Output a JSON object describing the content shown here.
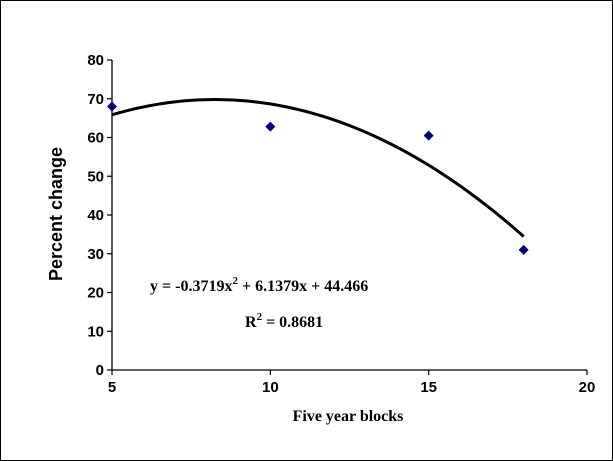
{
  "chart_data": {
    "type": "scatter",
    "title": "",
    "xlabel": "Five year blocks",
    "ylabel": "Percent change",
    "xlim": [
      5,
      20
    ],
    "ylim": [
      0,
      80
    ],
    "xticks": [
      5,
      10,
      15,
      20
    ],
    "yticks": [
      0,
      10,
      20,
      30,
      40,
      50,
      60,
      70,
      80
    ],
    "grid": false,
    "legend": "none",
    "marker_color": "#00007F",
    "series": [
      {
        "x": [
          5,
          10,
          15,
          18
        ],
        "y": [
          68,
          62.8,
          60.5,
          31
        ]
      }
    ],
    "trendline": {
      "type": "polynomial",
      "order": 2,
      "coefficients": {
        "a": -0.3719,
        "b": 6.1379,
        "c": 44.466
      },
      "x_range": [
        5,
        18
      ]
    },
    "annotations": {
      "equation_prefix": "y = -0.3719x",
      "equation_exp": "2",
      "equation_suffix": " + 6.1379x + 44.466",
      "r2_prefix": "R",
      "r2_exp": "2",
      "r2_suffix": " = 0.8681"
    }
  }
}
